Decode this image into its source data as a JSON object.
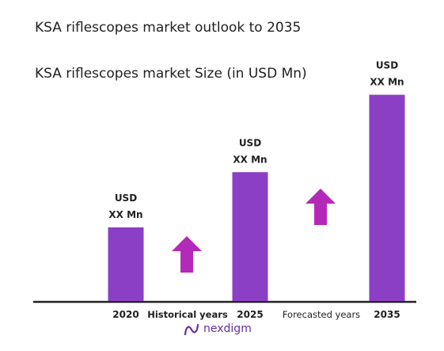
{
  "title": "KSA riflescopes market  outlook to 2035",
  "subtitle": "KSA riflescopes market Size (in USD Mn)",
  "brand": "nexdigm",
  "arrows": [
    {
      "label": "Historical years",
      "direction": "up"
    },
    {
      "label": "Forecasted years",
      "direction": "up"
    }
  ],
  "chart_data": {
    "type": "bar",
    "categories": [
      "2020",
      "2025",
      "2035"
    ],
    "values": [
      100,
      175,
      280
    ],
    "data_labels": [
      [
        "USD",
        "XX Mn"
      ],
      [
        "USD",
        "XX Mn"
      ],
      [
        "USD",
        "XX Mn"
      ]
    ],
    "title": "KSA riflescopes market Size (in USD Mn)",
    "xlabel": "",
    "ylabel": "",
    "grid": false,
    "legend": "none"
  },
  "colors": {
    "bar": "#8b3fc5",
    "arrow": "#b42ab8",
    "axis": "#222222",
    "text": "#1f1f1f",
    "brand": "#6a2c9f"
  }
}
